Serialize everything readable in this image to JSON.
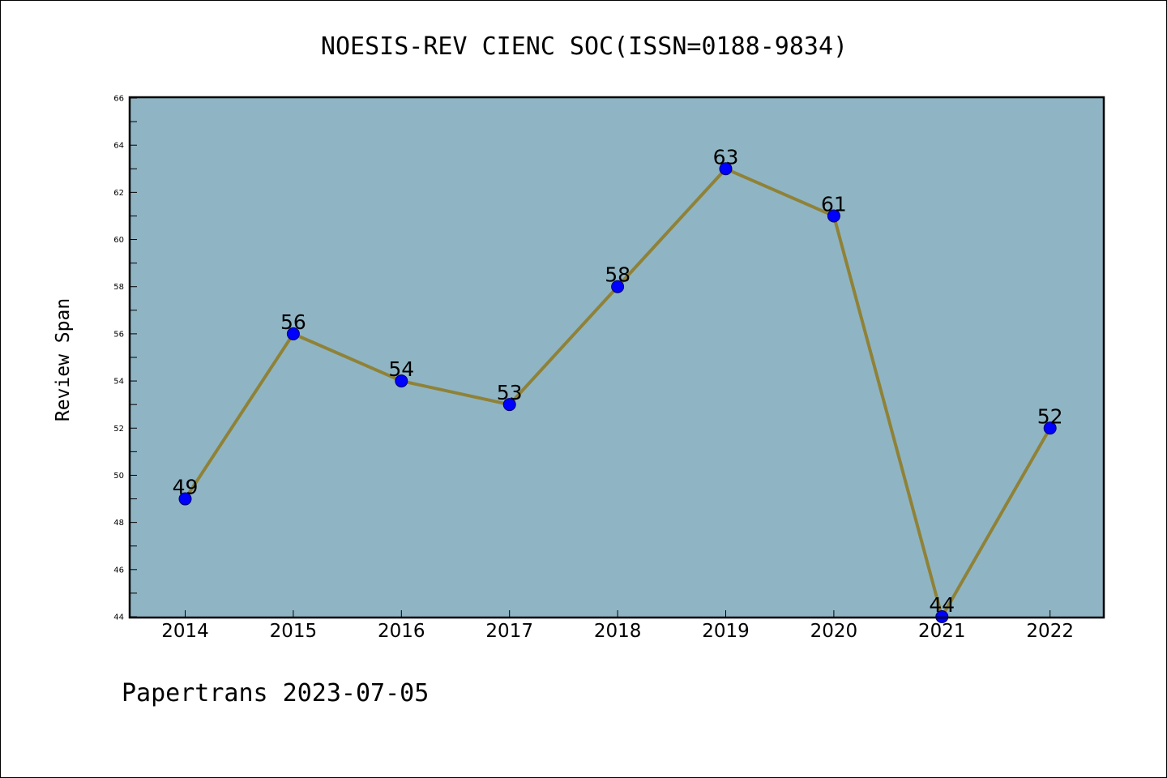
{
  "chart_data": {
    "type": "line",
    "title": "NOESIS-REV CIENC SOC(ISSN=0188-9834)",
    "xlabel": "",
    "ylabel": "Review Span",
    "categories": [
      "2014",
      "2015",
      "2016",
      "2017",
      "2018",
      "2019",
      "2020",
      "2021",
      "2022"
    ],
    "series": [
      {
        "values": [
          49,
          56,
          54,
          53,
          58,
          63,
          61,
          44,
          52
        ]
      }
    ],
    "data_labels": [
      "49",
      "56",
      "54",
      "53",
      "58",
      "63",
      "61",
      "44",
      "52"
    ],
    "ylim": [
      44,
      66
    ],
    "yticks": [
      "44",
      "46",
      "48",
      "50",
      "52",
      "54",
      "56",
      "58",
      "60",
      "62",
      "64",
      "66"
    ],
    "grid": false,
    "legend": "none",
    "colors": {
      "plot_background": "#8fb5c4",
      "line": "#8f8238",
      "marker": "#0000ff",
      "marker_edge": "#00006a"
    }
  },
  "footer": {
    "text": "Papertrans 2023-07-05"
  }
}
